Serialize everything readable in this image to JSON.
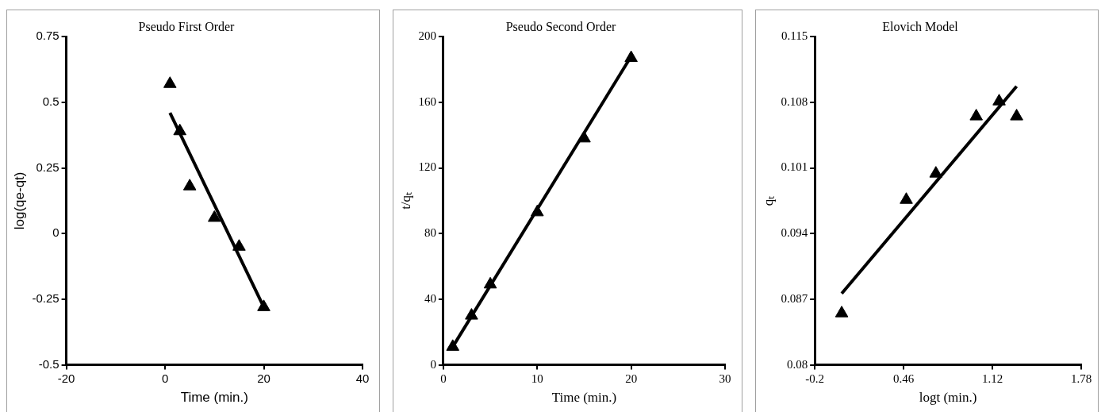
{
  "chart_data": [
    {
      "type": "scatter",
      "title": "Pseudo First Order",
      "xlabel": "Time (min.)",
      "ylabel": "log(qe-qt)",
      "grid": false,
      "legend": false,
      "xlim": [
        -20,
        40
      ],
      "xticks": [
        -20,
        0,
        20,
        40
      ],
      "ylim": [
        -0.5,
        0.75
      ],
      "yticks": [
        -0.5,
        -0.25,
        0,
        0.25,
        0.5,
        0.75
      ],
      "series": [
        {
          "color": "#000000",
          "marker": "triangle",
          "x": [
            1,
            3,
            5,
            10,
            15,
            20
          ],
          "values": [
            0.57,
            0.39,
            0.18,
            0.06,
            -0.05,
            -0.28
          ]
        },
        {
          "type": "line",
          "marker": "none",
          "color": "#000000",
          "x": [
            1,
            20
          ],
          "values": [
            0.46,
            -0.28
          ]
        }
      ]
    },
    {
      "type": "scatter",
      "title": "Pseudo Second Order",
      "xlabel": "Time (min.)",
      "ylabel": "t/qₜ",
      "grid": false,
      "legend": false,
      "xlim": [
        0,
        30
      ],
      "xticks": [
        0,
        10,
        20,
        30
      ],
      "ylim": [
        0,
        200
      ],
      "yticks": [
        0,
        40,
        80,
        120,
        160,
        200
      ],
      "series": [
        {
          "color": "#000000",
          "marker": "triangle",
          "x": [
            1,
            3,
            5,
            10,
            15,
            20
          ],
          "values": [
            11,
            30,
            49,
            93,
            138,
            187
          ]
        },
        {
          "type": "line",
          "marker": "none",
          "color": "#000000",
          "x": [
            1,
            20
          ],
          "values": [
            11,
            188
          ]
        }
      ]
    },
    {
      "type": "scatter",
      "title": "Elovich Model",
      "xlabel": "logt (min.)",
      "ylabel": "qₜ",
      "grid": false,
      "legend": false,
      "xlim": [
        -0.2,
        1.78
      ],
      "xticks": [
        -0.2,
        0.46,
        1.12,
        1.78
      ],
      "ylim": [
        0.08,
        0.115
      ],
      "yticks": [
        0.08,
        0.087,
        0.094,
        0.101,
        0.108,
        0.115
      ],
      "series": [
        {
          "color": "#000000",
          "marker": "triangle",
          "x": [
            0,
            0.48,
            0.7,
            1,
            1.17,
            1.3
          ],
          "values": [
            0.0855,
            0.0976,
            0.1004,
            0.1065,
            0.1081,
            0.1065
          ]
        },
        {
          "type": "line",
          "marker": "none",
          "color": "#000000",
          "x": [
            0,
            1.3
          ],
          "values": [
            0.0876,
            0.1097
          ]
        }
      ]
    }
  ]
}
